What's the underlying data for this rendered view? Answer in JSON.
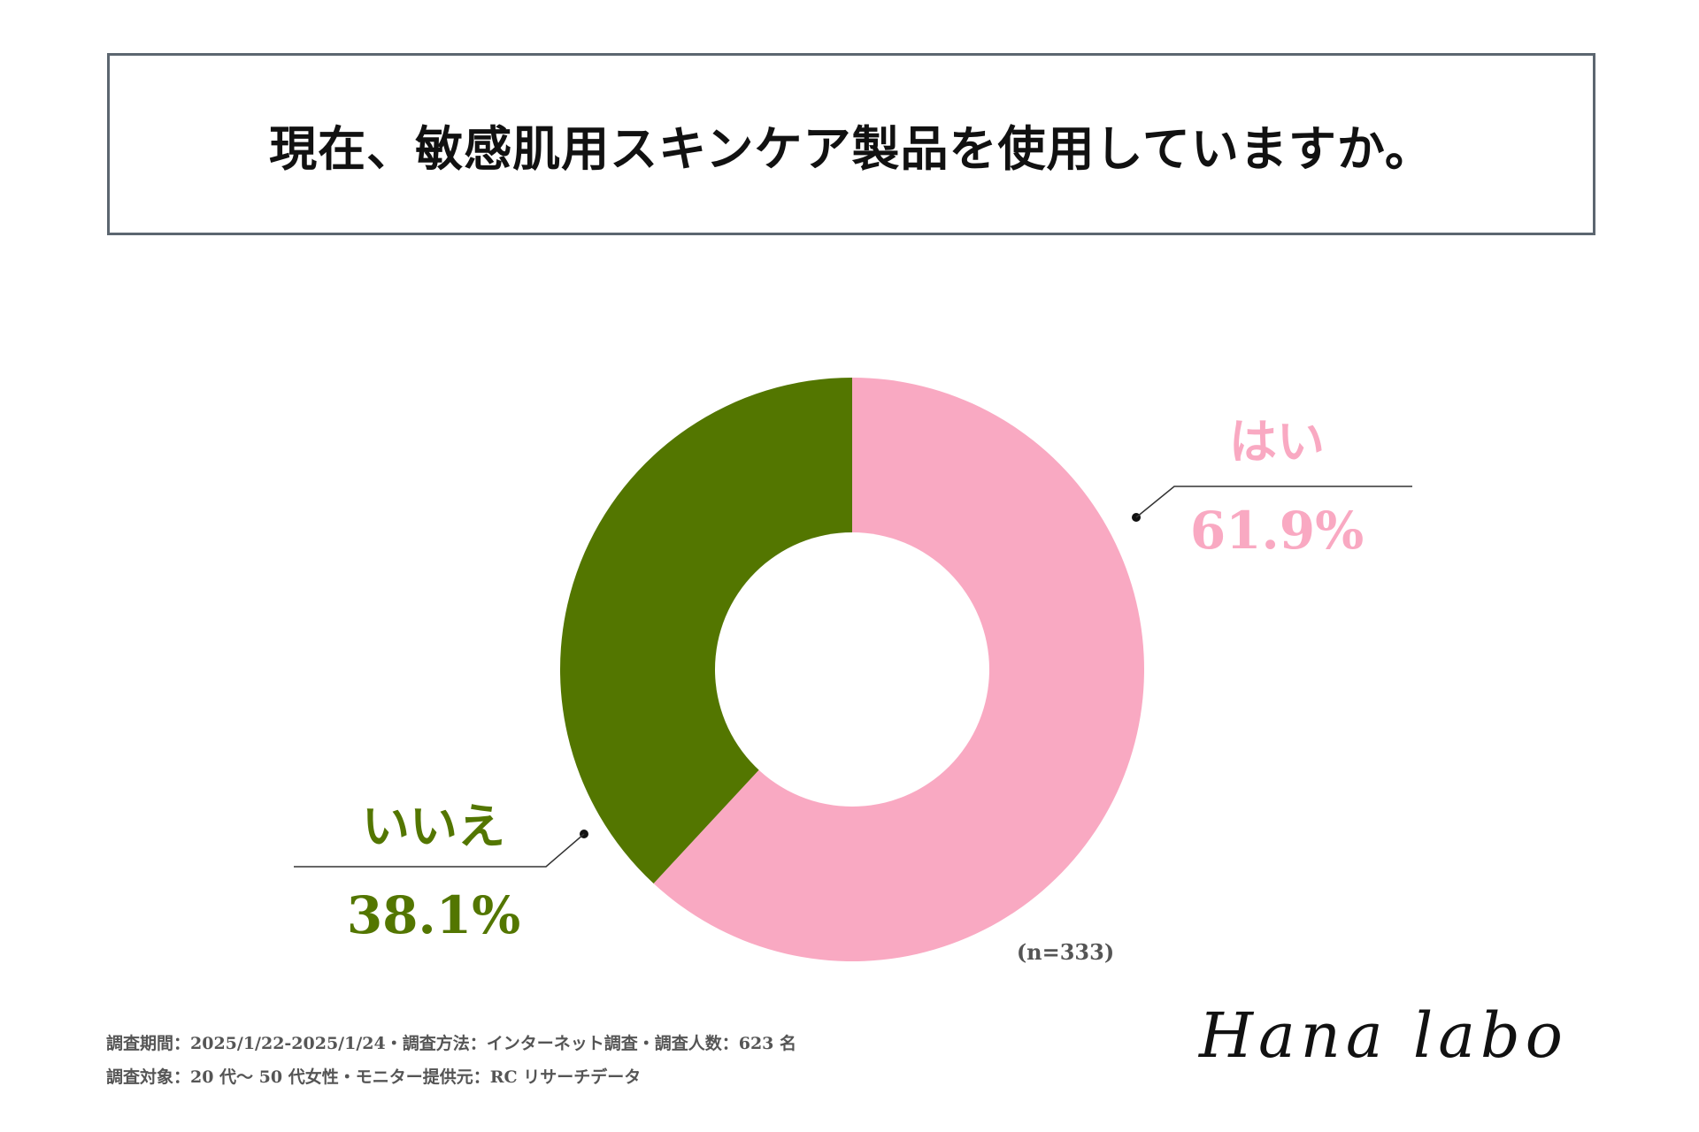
{
  "header": {
    "title": "現在、敏感肌用スキンケア製品を使用していますか。"
  },
  "chart_data": {
    "type": "pie",
    "title": "現在、敏感肌用スキンケア製品を使用していますか。",
    "categories": [
      "はい",
      "いいえ"
    ],
    "values": [
      61.9,
      38.1
    ],
    "value_labels": [
      "61.9%",
      "38.1%"
    ],
    "colors": [
      "#f9a9c2",
      "#537600"
    ],
    "sample_note": "(n=333)"
  },
  "footer": {
    "line1": "調査期間：2025/1/22-2025/1/24・調査方法：インターネット調査・調査人数：623 名",
    "line2": "調査対象：20 代〜 50 代女性・モニター提供元：RC リサーチデータ",
    "logo_text": "Hana labo"
  }
}
